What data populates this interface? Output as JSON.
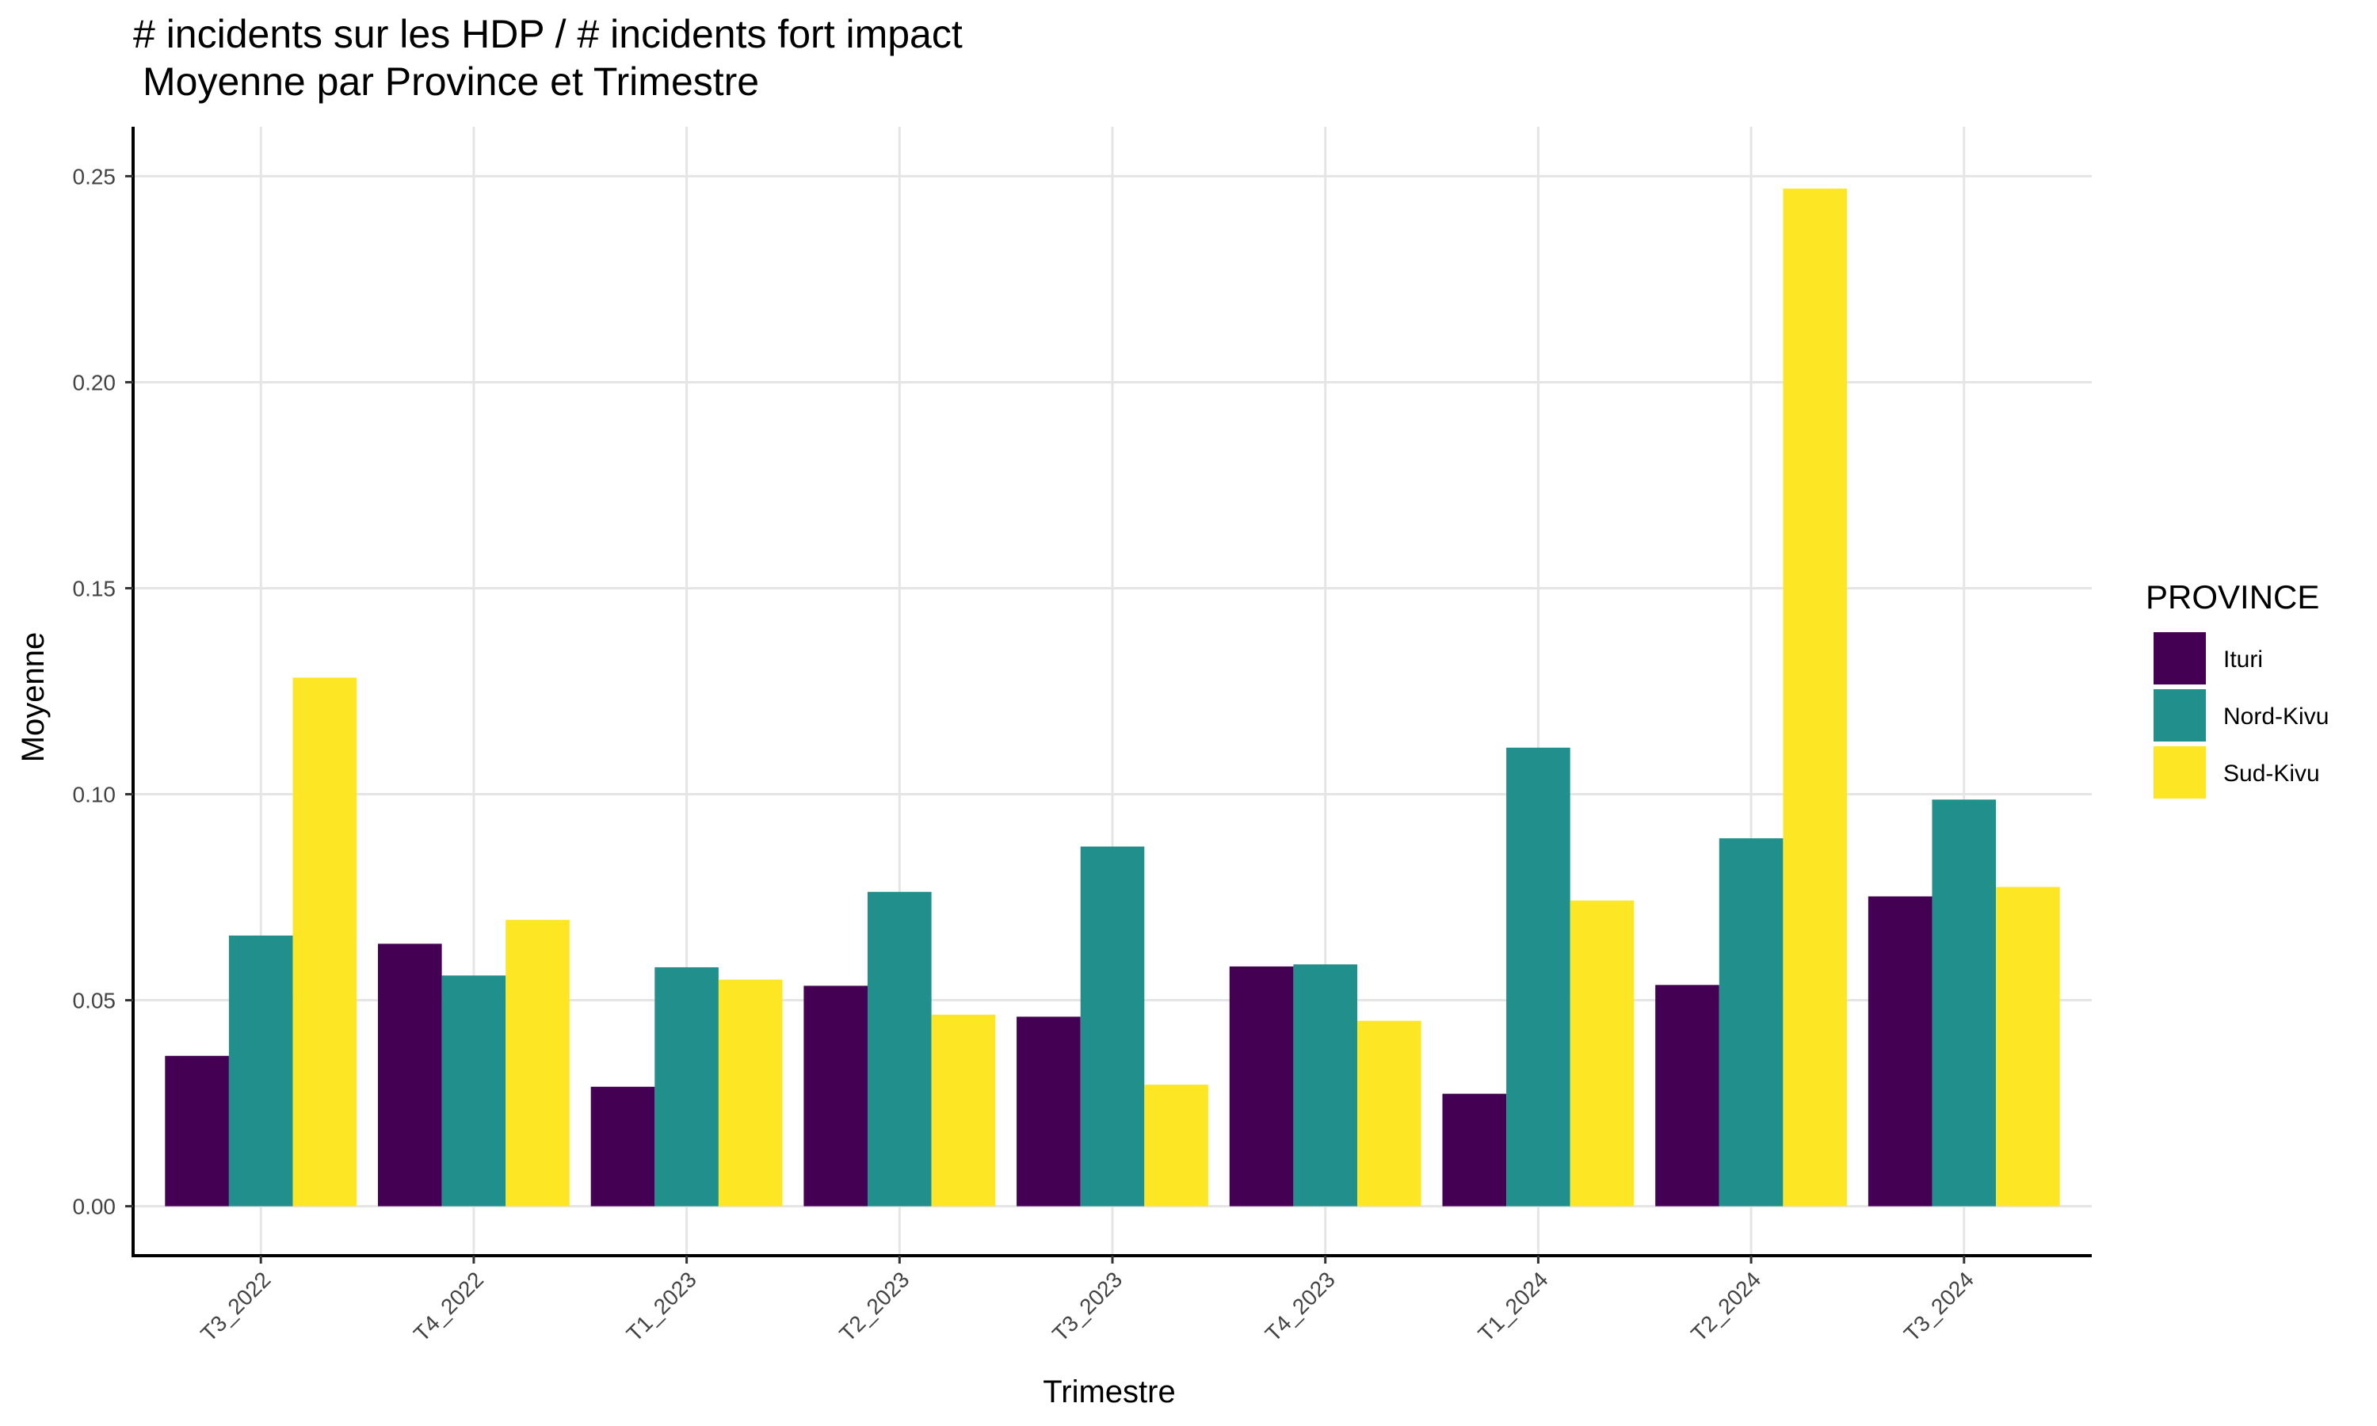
{
  "chart_data": {
    "type": "bar",
    "title_line1": "# incidents sur les HDP / # incidents fort impact",
    "title_line2": "Moyenne par Province et Trimestre",
    "xlabel": "Trimestre",
    "ylabel": "Moyenne",
    "categories": [
      "T3_2022",
      "T4_2022",
      "T1_2023",
      "T2_2023",
      "T3_2023",
      "T4_2023",
      "T1_2024",
      "T2_2024",
      "T3_2024"
    ],
    "series": [
      {
        "name": "Ituri",
        "color": "#440154",
        "values": [
          0.0365,
          0.0637,
          0.029,
          0.0535,
          0.046,
          0.0582,
          0.0273,
          0.0537,
          0.0752
        ]
      },
      {
        "name": "Nord-Kivu",
        "color": "#21908C",
        "values": [
          0.0657,
          0.056,
          0.058,
          0.0763,
          0.0873,
          0.0587,
          0.1113,
          0.0893,
          0.0987
        ]
      },
      {
        "name": "Sud-Kivu",
        "color": "#FDE725",
        "values": [
          0.1283,
          0.0695,
          0.055,
          0.0465,
          0.0295,
          0.045,
          0.0742,
          0.247,
          0.0775
        ]
      }
    ],
    "ylim": [
      -0.012,
      0.262
    ],
    "yticks": [
      0,
      0.05,
      0.1,
      0.15,
      0.2,
      0.25
    ],
    "ytick_labels": [
      "0.00",
      "0.05",
      "0.10",
      "0.15",
      "0.20",
      "0.25"
    ],
    "legend_title": "PROVINCE",
    "legend_position": "right",
    "grid": true
  }
}
